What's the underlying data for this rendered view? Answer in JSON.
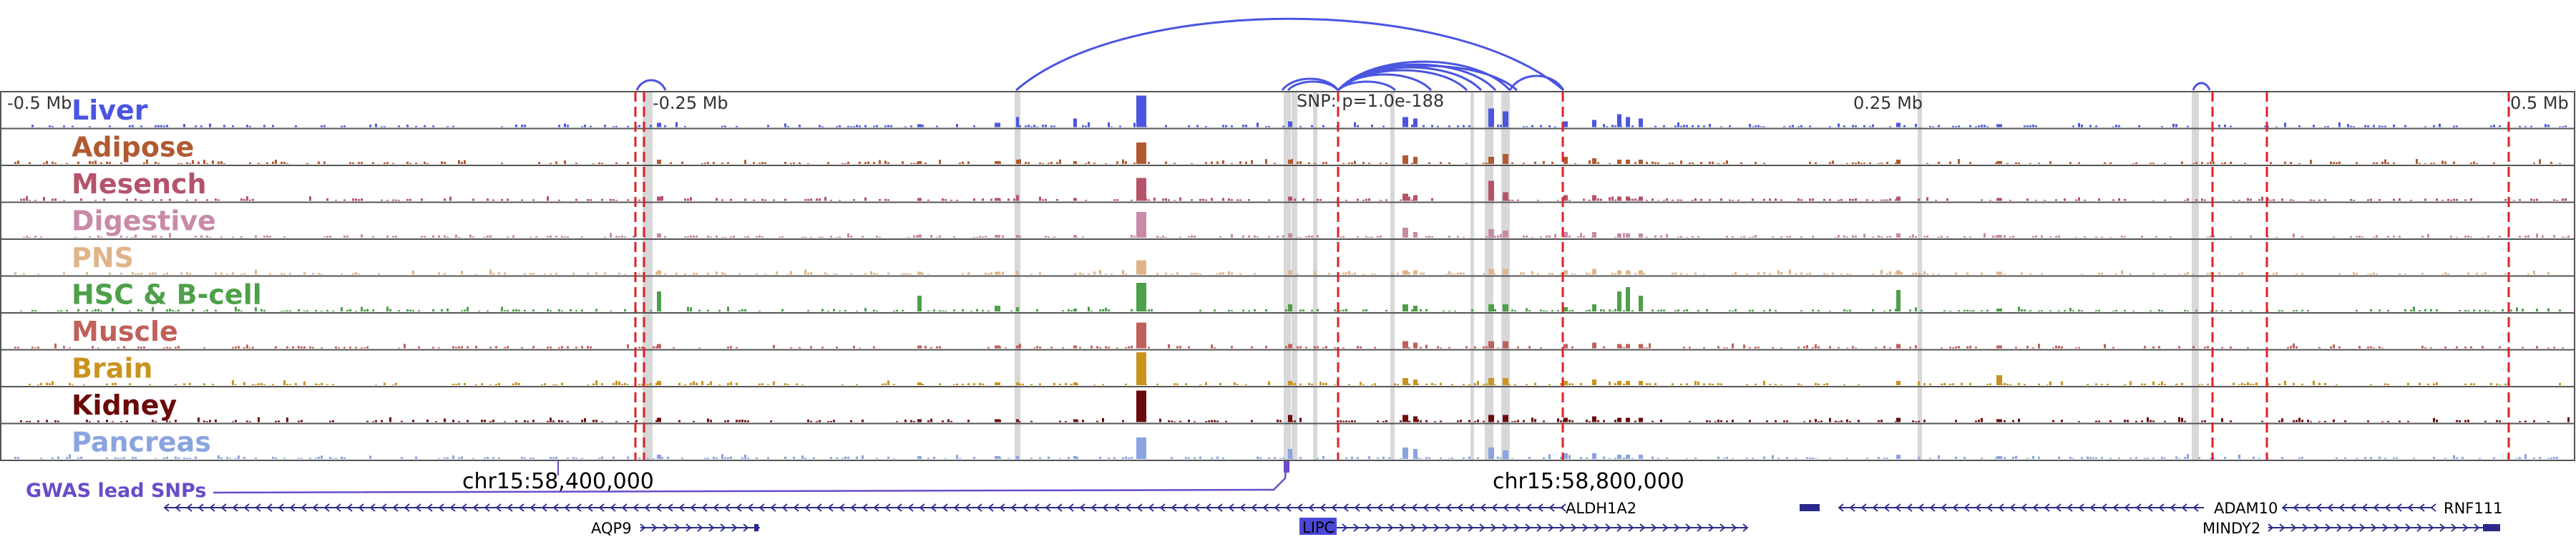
{
  "axis": {
    "ticks": [
      "-0.5 Mb",
      "-0.25 Mb",
      "0.25 Mb",
      "0.5 Mb"
    ],
    "snp_label": "SNP: p=1.0e-188"
  },
  "tracks": [
    {
      "name": "Liver",
      "color": "#4a55e0"
    },
    {
      "name": "Adipose",
      "color": "#b05a32"
    },
    {
      "name": "Mesench",
      "color": "#b5536a"
    },
    {
      "name": "Digestive",
      "color": "#c98aa8"
    },
    {
      "name": "PNS",
      "color": "#e0b48a"
    },
    {
      "name": "HSC & B-cell",
      "color": "#4ea04a"
    },
    {
      "name": "Muscle",
      "color": "#c0605a"
    },
    {
      "name": "Brain",
      "color": "#c9941e"
    },
    {
      "name": "Kidney",
      "color": "#6b0a0a"
    },
    {
      "name": "Pancreas",
      "color": "#8aa4e0"
    }
  ],
  "gwas": {
    "label": "GWAS lead SNPs",
    "color": "#6a4cc8"
  },
  "coordinates": [
    "chr15:58,400,000",
    "chr15:58,800,000"
  ],
  "genes": [
    {
      "name": "ALDH1A2"
    },
    {
      "name": "AQP9"
    },
    {
      "name": "LIPC"
    },
    {
      "name": "ADAM10"
    },
    {
      "name": "MINDY2"
    },
    {
      "name": "RNF111"
    }
  ],
  "colors": {
    "loop": "#4a55e0",
    "red_dash": "#e0202a",
    "highlight": "#d8d8d8",
    "gene": "#2a2a8a"
  }
}
